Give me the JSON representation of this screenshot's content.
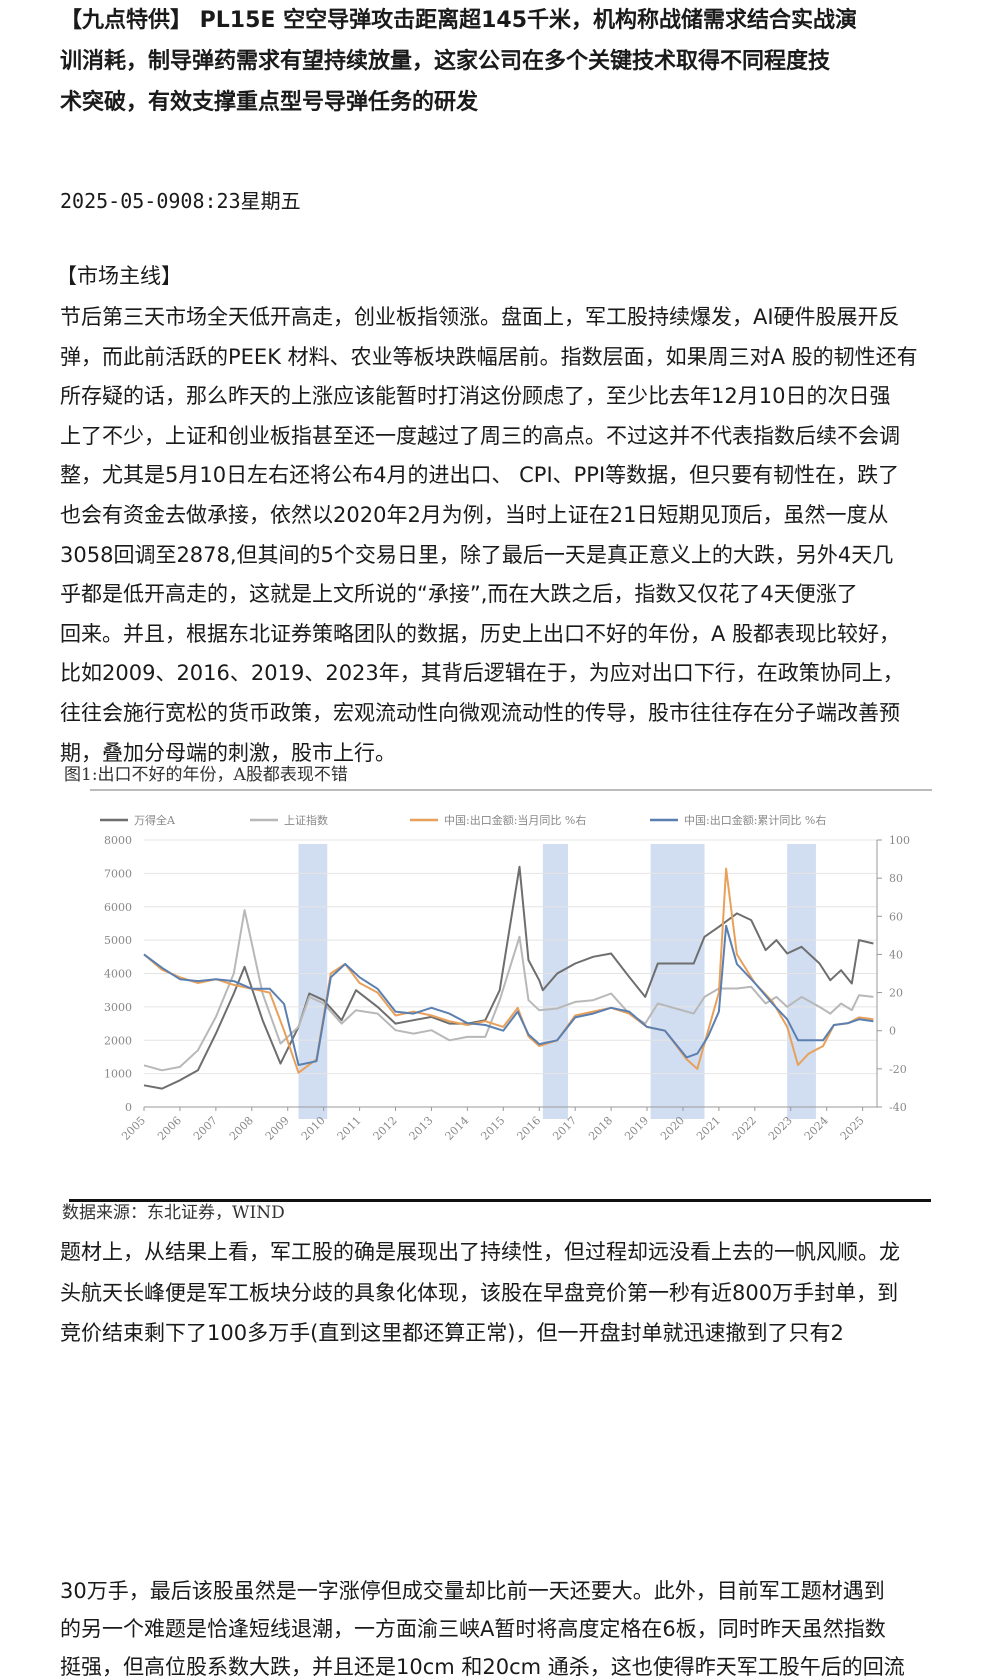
{
  "headline": {
    "lines": [
      "【九点特供】 PL15E  空空导弹攻击距离超145千米，机构称战储需求结合实战演",
      "训消耗，制导弹药需求有望持续放量，这家公司在多个关键技术取得不同程度技",
      "术突破，有效支撑重点型号导弹任务的研发"
    ]
  },
  "dateline": "2025-05-0908:23星期五",
  "section_title": "【市场主线】",
  "paragraph1": [
    "节后第三天市场全天低开高走，创业板指领涨。盘面上，军工股持续爆发，AI硬件股展开反",
    "弹，而此前活跃的PEEK 材料、农业等板块跌幅居前。指数层面，如果周三对A 股的韧性还有",
    "所存疑的话，那么昨天的上涨应该能暂时打消这份顾虑了，至少比去年12月10日的次日强",
    "上了不少，上证和创业板指甚至还一度越过了周三的高点。不过这并不代表指数后续不会调",
    "整，尤其是5月10日左右还将公布4月的进出口、 CPI、PPI等数据，但只要有韧性在，跌了",
    "也会有资金去做承接，依然以2020年2月为例，当时上证在21日短期见顶后，虽然一度从",
    "3058回调至2878,但其间的5个交易日里，除了最后一天是真正意义上的大跌，另外4天几",
    "乎都是低开高走的，这就是上文所说的“承接”,而在大跌之后，指数又仅花了4天便涨了",
    "回来。并且，根据东北证券策略团队的数据，历史上出口不好的年份，A 股都表现比较好，",
    "比如2009、2016、2019、2023年，其背后逻辑在于，为应对出口下行，在政策协同上，",
    "往往会施行宽松的货币政策，宏观流动性向微观流动性的传导，股市往往存在分子端改善预",
    "期，叠加分母端的刺激，股市上行。"
  ],
  "figure_caption": "图1:出口不好的年份，A股都表现不错",
  "figure_source": "数据来源：东北证券，WIND",
  "paragraph2": [
    "题材上，从结果上看，军工股的确是展现出了持续性，但过程却远没看上去的一帆风顺。龙",
    "头航天长峰便是军工板块分歧的具象化体现，该股在早盘竞价第一秒有近800万手封单，到",
    "竞价结束剩下了100多万手(直到这里都还算正常)，但一开盘封单就迅速撤到了只有2"
  ],
  "paragraph3": [
    "30万手，最后该股虽然是一字涨停但成交量却比前一天还要大。此外，目前军工题材遇到",
    "的另一个难题是恰逢短线退潮，一方面渝三峡A暂时将高度定格在6板，同时昨天虽然指数",
    "挺强，但高位股系数大跌，并且还是10cm 和20cm 通杀，这也使得昨天军工股午后的回流"
  ],
  "chart_data": {
    "type": "line",
    "legend_placement": "top",
    "grid": true,
    "xlim": [
      2005,
      2025.4
    ],
    "ylim_left": [
      0,
      8000
    ],
    "ylim_right": [
      -40,
      100
    ],
    "left_ticks": [
      "0",
      "1000",
      "2000",
      "3000",
      "4000",
      "5000",
      "6000",
      "7000",
      "8000"
    ],
    "right_ticks": [
      "-40",
      "-20",
      "0",
      "20",
      "40",
      "60",
      "80",
      "100"
    ],
    "x_tick_labels": [
      "2005",
      "2006",
      "2007",
      "2008",
      "2009",
      "2010",
      "2011",
      "2012",
      "2013",
      "2014",
      "2015",
      "2016",
      "2017",
      "2018",
      "2019",
      "2020",
      "2021",
      "2022",
      "2023",
      "2024",
      "2025"
    ],
    "shaded_periods": [
      [
        2009.3,
        2010.1
      ],
      [
        2016.1,
        2016.8
      ],
      [
        2019.1,
        2020.6
      ],
      [
        2022.9,
        2023.7
      ]
    ],
    "shade_color": "#c9d8ee",
    "series": [
      {
        "name": "万得全A",
        "axis": "left",
        "color": "#6e6e6e",
        "points": [
          [
            2005,
            650
          ],
          [
            2005.5,
            550
          ],
          [
            2006,
            800
          ],
          [
            2006.5,
            1100
          ],
          [
            2007,
            2200
          ],
          [
            2007.5,
            3400
          ],
          [
            2007.8,
            4200
          ],
          [
            2008.3,
            2600
          ],
          [
            2008.8,
            1300
          ],
          [
            2009.3,
            2400
          ],
          [
            2009.6,
            3400
          ],
          [
            2010,
            3200
          ],
          [
            2010.5,
            2600
          ],
          [
            2010.9,
            3500
          ],
          [
            2011.5,
            3000
          ],
          [
            2012,
            2500
          ],
          [
            2012.5,
            2600
          ],
          [
            2013,
            2700
          ],
          [
            2013.5,
            2500
          ],
          [
            2014,
            2500
          ],
          [
            2014.5,
            2600
          ],
          [
            2014.9,
            3500
          ],
          [
            2015.45,
            7200
          ],
          [
            2015.7,
            4400
          ],
          [
            2016,
            3800
          ],
          [
            2016.1,
            3500
          ],
          [
            2016.5,
            4000
          ],
          [
            2017,
            4300
          ],
          [
            2017.5,
            4500
          ],
          [
            2018,
            4600
          ],
          [
            2018.5,
            3900
          ],
          [
            2018.95,
            3300
          ],
          [
            2019.3,
            4300
          ],
          [
            2019.8,
            4300
          ],
          [
            2020.3,
            4300
          ],
          [
            2020.6,
            5100
          ],
          [
            2021,
            5400
          ],
          [
            2021.5,
            5800
          ],
          [
            2021.9,
            5600
          ],
          [
            2022.3,
            4700
          ],
          [
            2022.6,
            5000
          ],
          [
            2022.9,
            4600
          ],
          [
            2023.3,
            4800
          ],
          [
            2023.8,
            4300
          ],
          [
            2024.1,
            3800
          ],
          [
            2024.4,
            4100
          ],
          [
            2024.7,
            3700
          ],
          [
            2024.9,
            5000
          ],
          [
            2025.3,
            4900
          ]
        ]
      },
      {
        "name": "上证指数",
        "axis": "left",
        "color": "#b8b8b8",
        "points": [
          [
            2005,
            1250
          ],
          [
            2005.5,
            1100
          ],
          [
            2006,
            1200
          ],
          [
            2006.5,
            1700
          ],
          [
            2007,
            2700
          ],
          [
            2007.5,
            4000
          ],
          [
            2007.8,
            5900
          ],
          [
            2008.3,
            3400
          ],
          [
            2008.8,
            1900
          ],
          [
            2009.3,
            2400
          ],
          [
            2009.6,
            3300
          ],
          [
            2010,
            3100
          ],
          [
            2010.5,
            2500
          ],
          [
            2010.9,
            2900
          ],
          [
            2011.5,
            2800
          ],
          [
            2012,
            2300
          ],
          [
            2012.5,
            2200
          ],
          [
            2013,
            2300
          ],
          [
            2013.5,
            2000
          ],
          [
            2014,
            2100
          ],
          [
            2014.5,
            2100
          ],
          [
            2014.9,
            3200
          ],
          [
            2015.45,
            5100
          ],
          [
            2015.7,
            3200
          ],
          [
            2016,
            2900
          ],
          [
            2016.5,
            2950
          ],
          [
            2017,
            3150
          ],
          [
            2017.5,
            3200
          ],
          [
            2018,
            3400
          ],
          [
            2018.5,
            2800
          ],
          [
            2018.95,
            2500
          ],
          [
            2019.3,
            3100
          ],
          [
            2019.8,
            2950
          ],
          [
            2020.3,
            2800
          ],
          [
            2020.6,
            3300
          ],
          [
            2021,
            3550
          ],
          [
            2021.5,
            3550
          ],
          [
            2021.9,
            3600
          ],
          [
            2022.3,
            3100
          ],
          [
            2022.6,
            3300
          ],
          [
            2022.9,
            3000
          ],
          [
            2023.3,
            3300
          ],
          [
            2023.8,
            3000
          ],
          [
            2024.1,
            2800
          ],
          [
            2024.4,
            3100
          ],
          [
            2024.7,
            2900
          ],
          [
            2024.9,
            3350
          ],
          [
            2025.3,
            3300
          ]
        ]
      },
      {
        "name": "中国:出口金额:当月同比 %右",
        "axis": "right",
        "color": "#e8a05a",
        "points": [
          [
            2005,
            40
          ],
          [
            2005.5,
            32
          ],
          [
            2006,
            28
          ],
          [
            2006.5,
            25
          ],
          [
            2007,
            27
          ],
          [
            2007.5,
            24
          ],
          [
            2008,
            22
          ],
          [
            2008.5,
            20
          ],
          [
            2008.9,
            0
          ],
          [
            2009.3,
            -22
          ],
          [
            2009.8,
            -15
          ],
          [
            2010.2,
            30
          ],
          [
            2010.6,
            35
          ],
          [
            2011,
            25
          ],
          [
            2011.5,
            20
          ],
          [
            2012,
            8
          ],
          [
            2012.5,
            10
          ],
          [
            2013,
            8
          ],
          [
            2013.5,
            5
          ],
          [
            2014,
            3
          ],
          [
            2014.5,
            5
          ],
          [
            2015,
            2
          ],
          [
            2015.4,
            12
          ],
          [
            2015.7,
            -3
          ],
          [
            2016,
            -8
          ],
          [
            2016.5,
            -5
          ],
          [
            2017,
            8
          ],
          [
            2017.5,
            10
          ],
          [
            2018,
            12
          ],
          [
            2018.5,
            9
          ],
          [
            2019,
            2
          ],
          [
            2019.5,
            0
          ],
          [
            2020.1,
            -15
          ],
          [
            2020.4,
            -20
          ],
          [
            2020.7,
            0
          ],
          [
            2021.0,
            20
          ],
          [
            2021.2,
            85
          ],
          [
            2021.5,
            40
          ],
          [
            2022,
            25
          ],
          [
            2022.5,
            15
          ],
          [
            2022.9,
            2
          ],
          [
            2023.2,
            -18
          ],
          [
            2023.5,
            -12
          ],
          [
            2023.9,
            -8
          ],
          [
            2024.2,
            3
          ],
          [
            2024.6,
            4
          ],
          [
            2024.9,
            7
          ],
          [
            2025.3,
            6
          ]
        ]
      },
      {
        "name": "中国:出口金额:累计同比 %右",
        "axis": "right",
        "color": "#5a7fb0",
        "points": [
          [
            2005,
            40
          ],
          [
            2005.5,
            33
          ],
          [
            2006,
            27
          ],
          [
            2006.5,
            26
          ],
          [
            2007,
            27
          ],
          [
            2007.5,
            26
          ],
          [
            2008,
            22
          ],
          [
            2008.5,
            22
          ],
          [
            2008.9,
            14
          ],
          [
            2009.3,
            -18
          ],
          [
            2009.8,
            -16
          ],
          [
            2010.2,
            28
          ],
          [
            2010.6,
            35
          ],
          [
            2011,
            28
          ],
          [
            2011.5,
            22
          ],
          [
            2012,
            10
          ],
          [
            2012.5,
            9
          ],
          [
            2013,
            12
          ],
          [
            2013.5,
            9
          ],
          [
            2014,
            4
          ],
          [
            2014.5,
            3
          ],
          [
            2015,
            0
          ],
          [
            2015.4,
            10
          ],
          [
            2015.7,
            -2
          ],
          [
            2016,
            -7
          ],
          [
            2016.5,
            -5
          ],
          [
            2017,
            7
          ],
          [
            2017.5,
            9
          ],
          [
            2018,
            12
          ],
          [
            2018.5,
            10
          ],
          [
            2019,
            2
          ],
          [
            2019.5,
            0
          ],
          [
            2020.1,
            -14
          ],
          [
            2020.4,
            -12
          ],
          [
            2020.7,
            -3
          ],
          [
            2021.0,
            10
          ],
          [
            2021.2,
            55
          ],
          [
            2021.5,
            35
          ],
          [
            2022,
            25
          ],
          [
            2022.5,
            14
          ],
          [
            2022.9,
            6
          ],
          [
            2023.2,
            -5
          ],
          [
            2023.5,
            -5
          ],
          [
            2023.9,
            -5
          ],
          [
            2024.2,
            3
          ],
          [
            2024.6,
            4
          ],
          [
            2024.9,
            6
          ],
          [
            2025.3,
            5
          ]
        ]
      }
    ]
  }
}
